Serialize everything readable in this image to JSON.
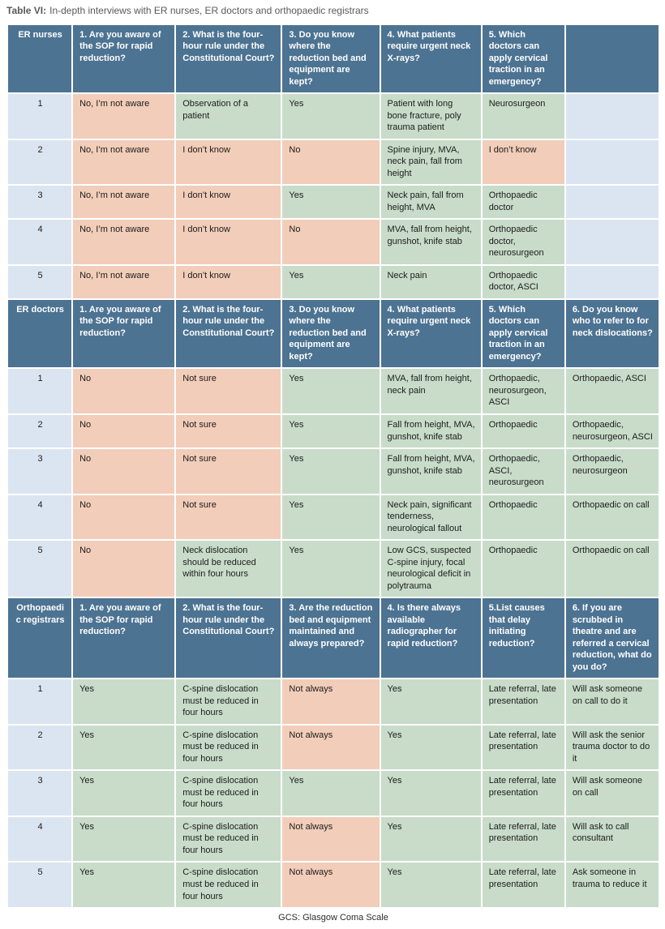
{
  "title": {
    "label": "Table VI:",
    "text": "In-depth interviews with ER nurses, ER doctors and orthopaedic registrars"
  },
  "footnote": "GCS: Glasgow Coma Scale",
  "colors": {
    "header_bg": "#4d7392",
    "header_text": "#ffffff",
    "negative_cell": "#f2cdb9",
    "positive_cell": "#c8dcc9",
    "row_label_cell": "#dbe5f1",
    "body_text": "#1c1c1c",
    "title_text": "#595959"
  },
  "table": {
    "sections": [
      {
        "group_label": "ER nurses",
        "questions": [
          "1. Are you aware of the SOP for rapid reduction?",
          "2. What is the four-hour rule under the Constitutional Court?",
          "3. Do you know where the reduction bed and equipment are kept?",
          "4. What patients require urgent neck X-rays?",
          "5. Which doctors can apply cervical traction in an emergency?",
          ""
        ],
        "rows": [
          {
            "label": "1",
            "answers": [
              {
                "text": "No, I’m not aware",
                "tone": "pink"
              },
              {
                "text": "Observation of a patient",
                "tone": "green"
              },
              {
                "text": "Yes",
                "tone": "green"
              },
              {
                "text": "Patient with long bone fracture, poly trauma patient",
                "tone": "green"
              },
              {
                "text": "Neurosurgeon",
                "tone": "green"
              },
              {
                "text": "",
                "tone": "blue"
              }
            ]
          },
          {
            "label": "2",
            "answers": [
              {
                "text": "No, I’m not aware",
                "tone": "pink"
              },
              {
                "text": "I don’t know",
                "tone": "pink"
              },
              {
                "text": "No",
                "tone": "pink"
              },
              {
                "text": "Spine injury, MVA, neck pain, fall from height",
                "tone": "green"
              },
              {
                "text": "I don’t know",
                "tone": "pink"
              },
              {
                "text": "",
                "tone": "blue"
              }
            ]
          },
          {
            "label": "3",
            "answers": [
              {
                "text": "No, I’m not aware",
                "tone": "pink"
              },
              {
                "text": "I don’t know",
                "tone": "pink"
              },
              {
                "text": "Yes",
                "tone": "green"
              },
              {
                "text": "Neck pain, fall from height, MVA",
                "tone": "green"
              },
              {
                "text": "Orthopaedic doctor",
                "tone": "green"
              },
              {
                "text": "",
                "tone": "blue"
              }
            ]
          },
          {
            "label": "4",
            "answers": [
              {
                "text": "No, I’m not aware",
                "tone": "pink"
              },
              {
                "text": "I don’t know",
                "tone": "pink"
              },
              {
                "text": "No",
                "tone": "pink"
              },
              {
                "text": "MVA, fall from height, gunshot, knife stab",
                "tone": "green"
              },
              {
                "text": "Orthopaedic doctor, neurosurgeon",
                "tone": "green"
              },
              {
                "text": "",
                "tone": "blue"
              }
            ]
          },
          {
            "label": "5",
            "answers": [
              {
                "text": "No, I’m not aware",
                "tone": "pink"
              },
              {
                "text": "I don’t know",
                "tone": "pink"
              },
              {
                "text": "Yes",
                "tone": "green"
              },
              {
                "text": "Neck pain",
                "tone": "green"
              },
              {
                "text": "Orthopaedic doctor, ASCI",
                "tone": "green"
              },
              {
                "text": "",
                "tone": "blue"
              }
            ]
          }
        ]
      },
      {
        "group_label": "ER doctors",
        "questions": [
          "1. Are you aware of the SOP for rapid reduction?",
          "2. What is the four-hour rule under the Constitutional Court?",
          "3. Do you know where the reduction bed and equipment are kept?",
          "4. What patients require urgent neck X-rays?",
          "5. Which doctors can apply cervical traction in an emergency?",
          "6. Do you know who to refer to for neck dislocations?"
        ],
        "rows": [
          {
            "label": "1",
            "answers": [
              {
                "text": "No",
                "tone": "pink"
              },
              {
                "text": "Not sure",
                "tone": "pink"
              },
              {
                "text": "Yes",
                "tone": "green"
              },
              {
                "text": "MVA, fall from height, neck pain",
                "tone": "green"
              },
              {
                "text": "Orthopaedic, neurosurgeon, ASCI",
                "tone": "green"
              },
              {
                "text": "Orthopaedic, ASCI",
                "tone": "green"
              }
            ]
          },
          {
            "label": "2",
            "answers": [
              {
                "text": "No",
                "tone": "pink"
              },
              {
                "text": "Not sure",
                "tone": "pink"
              },
              {
                "text": "Yes",
                "tone": "green"
              },
              {
                "text": "Fall from height, MVA, gunshot, knife stab",
                "tone": "green"
              },
              {
                "text": "Orthopaedic",
                "tone": "green"
              },
              {
                "text": "Orthopaedic, neurosurgeon, ASCI",
                "tone": "green"
              }
            ]
          },
          {
            "label": "3",
            "answers": [
              {
                "text": "No",
                "tone": "pink"
              },
              {
                "text": "Not sure",
                "tone": "pink"
              },
              {
                "text": "Yes",
                "tone": "green"
              },
              {
                "text": "Fall from height, MVA, gunshot, knife stab",
                "tone": "green"
              },
              {
                "text": "Orthopaedic, ASCI, neurosurgeon",
                "tone": "green"
              },
              {
                "text": "Orthopaedic, neurosurgeon",
                "tone": "green"
              }
            ]
          },
          {
            "label": "4",
            "answers": [
              {
                "text": "No",
                "tone": "pink"
              },
              {
                "text": "Not sure",
                "tone": "pink"
              },
              {
                "text": "Yes",
                "tone": "green"
              },
              {
                "text": "Neck pain, significant tenderness, neurological fallout",
                "tone": "green"
              },
              {
                "text": "Orthopaedic",
                "tone": "green"
              },
              {
                "text": "Orthopaedic on call",
                "tone": "green"
              }
            ]
          },
          {
            "label": "5",
            "answers": [
              {
                "text": "No",
                "tone": "pink"
              },
              {
                "text": "Neck dislocation should be reduced within four hours",
                "tone": "green"
              },
              {
                "text": "Yes",
                "tone": "green"
              },
              {
                "text": "Low GCS, suspected C-spine injury, focal neurological deficit in polytrauma",
                "tone": "green"
              },
              {
                "text": "Orthopaedic",
                "tone": "green"
              },
              {
                "text": "Orthopaedic on call",
                "tone": "green"
              }
            ]
          }
        ]
      },
      {
        "group_label": "Orthopaedic registrars",
        "questions": [
          "1. Are you aware of the SOP for rapid reduction?",
          "2. What is the four-hour rule under the Constitutional Court?",
          "3. Are the reduction bed and equipment maintained and always prepared?",
          "4. Is there always available radiographer for rapid reduction?",
          "5.List causes that delay initiating reduction?",
          "6. If you are scrubbed in theatre and are referred a cervical reduction, what do you do?"
        ],
        "rows": [
          {
            "label": "1",
            "answers": [
              {
                "text": "Yes",
                "tone": "green"
              },
              {
                "text": "C-spine dislocation must be reduced in four hours",
                "tone": "green"
              },
              {
                "text": "Not always",
                "tone": "pink"
              },
              {
                "text": "Yes",
                "tone": "green"
              },
              {
                "text": "Late referral, late presentation",
                "tone": "green"
              },
              {
                "text": "Will ask someone on call to do it",
                "tone": "green"
              }
            ]
          },
          {
            "label": "2",
            "answers": [
              {
                "text": "Yes",
                "tone": "green"
              },
              {
                "text": "C-spine dislocation must be reduced in four hours",
                "tone": "green"
              },
              {
                "text": "Not always",
                "tone": "pink"
              },
              {
                "text": "Yes",
                "tone": "green"
              },
              {
                "text": "Late referral, late presentation",
                "tone": "green"
              },
              {
                "text": "Will ask the senior trauma doctor to do it",
                "tone": "green"
              }
            ]
          },
          {
            "label": "3",
            "answers": [
              {
                "text": "Yes",
                "tone": "green"
              },
              {
                "text": "C-spine dislocation must be reduced in four hours",
                "tone": "green"
              },
              {
                "text": "Yes",
                "tone": "green"
              },
              {
                "text": "Yes",
                "tone": "green"
              },
              {
                "text": "Late referral, late presentation",
                "tone": "green"
              },
              {
                "text": "Will ask someone on call",
                "tone": "green"
              }
            ]
          },
          {
            "label": "4",
            "answers": [
              {
                "text": "Yes",
                "tone": "green"
              },
              {
                "text": "C-spine dislocation must be reduced in four hours",
                "tone": "green"
              },
              {
                "text": "Not always",
                "tone": "pink"
              },
              {
                "text": "Yes",
                "tone": "green"
              },
              {
                "text": "Late referral, late presentation",
                "tone": "green"
              },
              {
                "text": "Will ask to call consultant",
                "tone": "green"
              }
            ]
          },
          {
            "label": "5",
            "answers": [
              {
                "text": "Yes",
                "tone": "green"
              },
              {
                "text": "C-spine dislocation must be reduced in four hours",
                "tone": "green"
              },
              {
                "text": "Not always",
                "tone": "pink"
              },
              {
                "text": "Yes",
                "tone": "green"
              },
              {
                "text": "Late referral, late presentation",
                "tone": "green"
              },
              {
                "text": "Ask someone in trauma to reduce it",
                "tone": "green"
              }
            ]
          }
        ]
      }
    ]
  }
}
